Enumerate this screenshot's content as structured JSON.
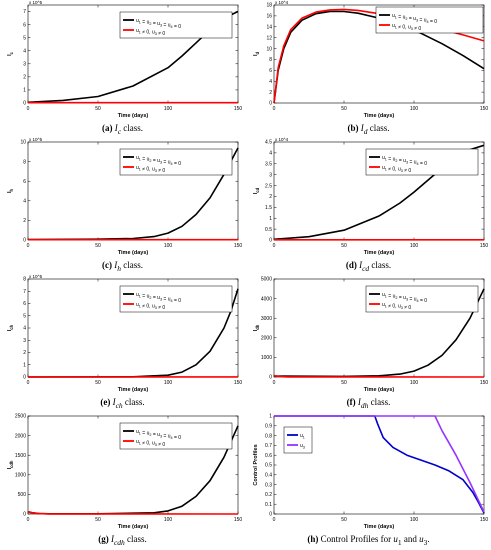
{
  "chart_data": [
    {
      "panel": "a",
      "type": "line",
      "ylabel": "I_c",
      "xlabel": "Time (days)",
      "scale_label": "x 10^5",
      "xlim": [
        0,
        150
      ],
      "ylim": [
        0,
        7.5
      ],
      "xticks": [
        0,
        50,
        100,
        150
      ],
      "yticks": [
        0,
        1,
        2,
        3,
        4,
        5,
        6,
        7
      ],
      "legend": [
        "u_1 = u_2 = u_3 = u_4 = 0",
        "u_1 ≠ 0, u_3 ≠ 0"
      ],
      "legend_loc": "top-center",
      "caption_tag": "(a)",
      "caption_sym": "I",
      "caption_sub": "c",
      "caption_text": "class.",
      "series": [
        {
          "name": "u_1 = u_2 = u_3 = u_4 = 0",
          "color": "#000000",
          "x": [
            0,
            25,
            50,
            75,
            100,
            110,
            120,
            130,
            140,
            150
          ],
          "y": [
            0.05,
            0.2,
            0.5,
            1.3,
            2.7,
            3.6,
            4.6,
            5.6,
            6.5,
            7.0
          ]
        },
        {
          "name": "u_1 ≠ 0, u_3 ≠ 0",
          "color": "#ff0000",
          "x": [
            0,
            150
          ],
          "y": [
            0.02,
            0.02
          ]
        }
      ]
    },
    {
      "panel": "b",
      "type": "line",
      "ylabel": "I_d",
      "xlabel": "Time (days)",
      "scale_label": "x 10^4",
      "xlim": [
        0,
        150
      ],
      "ylim": [
        0,
        18
      ],
      "xticks": [
        0,
        50,
        100,
        150
      ],
      "yticks": [
        0,
        2,
        4,
        6,
        8,
        10,
        12,
        14,
        16,
        18
      ],
      "legend": [
        "u_1 = u_2 = u_3 = u_4 = 0",
        "u_1 ≠ 0, u_3 ≠ 0"
      ],
      "legend_loc": "top-right",
      "caption_tag": "(b)",
      "caption_sym": "I",
      "caption_sub": "d",
      "caption_text": "class.",
      "series": [
        {
          "name": "u_1 = u_2 = u_3 = u_4 = 0",
          "color": "#000000",
          "x": [
            0,
            3,
            7,
            12,
            20,
            30,
            40,
            50,
            60,
            75,
            90,
            105,
            120,
            135,
            150
          ],
          "y": [
            0,
            6,
            10,
            13,
            15.2,
            16.4,
            16.8,
            16.8,
            16.5,
            15.6,
            14.3,
            12.8,
            10.9,
            8.7,
            6.3
          ]
        },
        {
          "name": "u_1 ≠ 0, u_3 ≠ 0",
          "color": "#ff0000",
          "x": [
            0,
            3,
            7,
            12,
            20,
            30,
            40,
            50,
            60,
            75,
            90,
            105,
            120,
            135,
            150
          ],
          "y": [
            0,
            6.5,
            10.5,
            13.5,
            15.6,
            16.7,
            17.1,
            17.2,
            17.0,
            16.4,
            15.5,
            14.5,
            13.5,
            12.5,
            11.4
          ]
        }
      ]
    },
    {
      "panel": "c",
      "type": "line",
      "ylabel": "I_h",
      "xlabel": "Time (days)",
      "scale_label": "x 10^5",
      "xlim": [
        0,
        150
      ],
      "ylim": [
        0,
        10
      ],
      "xticks": [
        0,
        50,
        100,
        150
      ],
      "yticks": [
        0,
        2,
        4,
        6,
        8,
        10
      ],
      "legend": [
        "u_1 = u_2 = u_3 = u_4 = 0",
        "u_1 ≠ 0, u_3 ≠ 0"
      ],
      "legend_loc": "top-center",
      "caption_tag": "(c)",
      "caption_sym": "I",
      "caption_sub": "h",
      "caption_text": "class.",
      "series": [
        {
          "name": "u_1 = u_2 = u_3 = u_4 = 0",
          "color": "#000000",
          "x": [
            0,
            50,
            75,
            90,
            100,
            110,
            120,
            130,
            140,
            150
          ],
          "y": [
            0.05,
            0.08,
            0.15,
            0.35,
            0.7,
            1.4,
            2.6,
            4.3,
            6.7,
            9.4
          ]
        },
        {
          "name": "u_1 ≠ 0, u_3 ≠ 0",
          "color": "#ff0000",
          "x": [
            0,
            150
          ],
          "y": [
            0.03,
            0.03
          ]
        }
      ]
    },
    {
      "panel": "d",
      "type": "line",
      "ylabel": "I_cd",
      "xlabel": "Time (days)",
      "scale_label": "x 10^4",
      "xlim": [
        0,
        150
      ],
      "ylim": [
        0,
        4.5
      ],
      "xticks": [
        0,
        50,
        100,
        150
      ],
      "yticks": [
        0,
        0.5,
        1,
        1.5,
        2,
        2.5,
        3,
        3.5,
        4,
        4.5
      ],
      "legend": [
        "u_1 = u_2 = u_3 = u_4 = 0",
        "u_1 ≠ 0, u_3 ≠ 0"
      ],
      "legend_loc": "top-center",
      "caption_tag": "(d)",
      "caption_sym": "I",
      "caption_sub": "cd",
      "caption_text": "class.",
      "series": [
        {
          "name": "u_1 = u_2 = u_3 = u_4 = 0",
          "color": "#000000",
          "x": [
            0,
            25,
            50,
            75,
            90,
            100,
            110,
            120,
            130,
            140,
            150
          ],
          "y": [
            0.03,
            0.15,
            0.45,
            1.1,
            1.7,
            2.2,
            2.75,
            3.3,
            3.8,
            4.15,
            4.35
          ]
        },
        {
          "name": "u_1 ≠ 0, u_3 ≠ 0",
          "color": "#ff0000",
          "x": [
            0,
            150
          ],
          "y": [
            0.01,
            0.01
          ]
        }
      ]
    },
    {
      "panel": "e",
      "type": "line",
      "ylabel": "I_ch",
      "xlabel": "Time (days)",
      "scale_label": "x 10^5",
      "xlim": [
        0,
        150
      ],
      "ylim": [
        0,
        8
      ],
      "xticks": [
        0,
        50,
        100,
        150
      ],
      "yticks": [
        0,
        1,
        2,
        3,
        4,
        5,
        6,
        7,
        8
      ],
      "legend": [
        "u_1 = u_2 = u_3 = u_4 = 0",
        "u_1 ≠ 0, u_3 ≠ 0"
      ],
      "legend_loc": "top-center",
      "caption_tag": "(e)",
      "caption_sym": "I",
      "caption_sub": "ch",
      "caption_text": "class.",
      "series": [
        {
          "name": "u_1 = u_2 = u_3 = u_4 = 0",
          "color": "#000000",
          "x": [
            0,
            75,
            100,
            110,
            120,
            130,
            140,
            145,
            150
          ],
          "y": [
            0,
            0.02,
            0.15,
            0.4,
            1.0,
            2.1,
            4.0,
            5.4,
            7.2
          ]
        },
        {
          "name": "u_1 ≠ 0, u_3 ≠ 0",
          "color": "#ff0000",
          "x": [
            0,
            150
          ],
          "y": [
            0.01,
            0.01
          ]
        }
      ]
    },
    {
      "panel": "f",
      "type": "line",
      "ylabel": "I_dh",
      "xlabel": "Time (days)",
      "scale_label": "",
      "xlim": [
        0,
        150
      ],
      "ylim": [
        0,
        5000
      ],
      "xticks": [
        0,
        50,
        100,
        150
      ],
      "yticks": [
        0,
        1000,
        2000,
        3000,
        4000,
        5000
      ],
      "legend": [
        "u_1 = u_2 = u_3 = u_4 = 0",
        "u_1 ≠ 0, u_3 ≠ 0"
      ],
      "legend_loc": "top-center",
      "caption_tag": "(f)",
      "caption_sym": "I",
      "caption_sub": "dh",
      "caption_text": "class.",
      "series": [
        {
          "name": "u_1 = u_2 = u_3 = u_4 = 0",
          "color": "#000000",
          "x": [
            0,
            50,
            75,
            90,
            100,
            110,
            120,
            130,
            140,
            150
          ],
          "y": [
            50,
            30,
            60,
            150,
            300,
            600,
            1100,
            1900,
            3000,
            4500
          ]
        },
        {
          "name": "u_1 ≠ 0, u_3 ≠ 0",
          "color": "#ff0000",
          "x": [
            0,
            2,
            6,
            10,
            150
          ],
          "y": [
            60,
            40,
            15,
            5,
            0
          ]
        }
      ]
    },
    {
      "panel": "g",
      "type": "line",
      "ylabel": "I_cdh",
      "xlabel": "Time (days)",
      "scale_label": "",
      "xlim": [
        0,
        150
      ],
      "ylim": [
        0,
        2500
      ],
      "xticks": [
        0,
        50,
        100,
        150
      ],
      "yticks": [
        0,
        500,
        1000,
        1500,
        2000,
        2500
      ],
      "legend": [
        "u_1 = u_2 = u_3 = u_4 = 0",
        "u_1 ≠ 0, u_3 ≠ 0"
      ],
      "legend_loc": "top-center",
      "caption_tag": "(g)",
      "caption_sym": "I",
      "caption_sub": "cdh",
      "caption_text": "class.",
      "series": [
        {
          "name": "u_1 = u_2 = u_3 = u_4 = 0",
          "color": "#000000",
          "x": [
            0,
            3,
            8,
            15,
            50,
            90,
            100,
            110,
            120,
            130,
            140,
            150
          ],
          "y": [
            60,
            30,
            10,
            5,
            5,
            30,
            80,
            200,
            450,
            850,
            1450,
            2250
          ]
        },
        {
          "name": "u_1 ≠ 0, u_3 ≠ 0",
          "color": "#ff0000",
          "x": [
            0,
            3,
            8,
            15,
            150
          ],
          "y": [
            60,
            30,
            10,
            3,
            0
          ]
        }
      ]
    },
    {
      "panel": "h",
      "type": "line",
      "ylabel": "Control Profiles",
      "xlabel": "Time (days)",
      "scale_label": "",
      "xlim": [
        0,
        150
      ],
      "ylim": [
        0,
        1
      ],
      "xticks": [
        0,
        50,
        100,
        150
      ],
      "yticks": [
        0,
        0.1,
        0.2,
        0.3,
        0.4,
        0.5,
        0.6,
        0.7,
        0.8,
        0.9,
        1
      ],
      "legend": [
        "u_1",
        "u_3"
      ],
      "legend_loc": "top-left",
      "caption_tag": "(h)",
      "caption_sym": "",
      "caption_sub": "",
      "caption_text": "Control Profiles for u_1 and u_3.",
      "series": [
        {
          "name": "u_1",
          "color": "#0000cc",
          "x": [
            0,
            72,
            74,
            78,
            85,
            95,
            105,
            115,
            125,
            135,
            142,
            146,
            150
          ],
          "y": [
            1,
            1,
            0.92,
            0.78,
            0.68,
            0.6,
            0.55,
            0.5,
            0.44,
            0.35,
            0.22,
            0.12,
            0.01
          ]
        },
        {
          "name": "u_3",
          "color": "#9933ff",
          "x": [
            0,
            115,
            120,
            130,
            140,
            150
          ],
          "y": [
            1,
            1,
            0.85,
            0.6,
            0.32,
            0.02
          ]
        }
      ]
    }
  ]
}
